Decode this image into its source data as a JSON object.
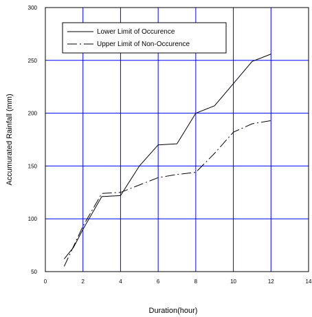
{
  "chart_data": {
    "type": "line",
    "xlabel": "Duration(hour)",
    "ylabel": "Accumurated Rainfall (mm)",
    "xlim": [
      0,
      14
    ],
    "ylim": [
      50,
      300
    ],
    "xticks": [
      0,
      2,
      4,
      6,
      8,
      10,
      12,
      14
    ],
    "yticks": [
      50,
      100,
      150,
      200,
      250,
      300
    ],
    "grid": true,
    "grid_color": "#0000ff",
    "legend_position": "top-left",
    "series": [
      {
        "name": "Lower Limit of Occurence",
        "style": "solid",
        "color": "#000000",
        "x": [
          1,
          1.5,
          2,
          3,
          4,
          5,
          6,
          7,
          8,
          9,
          10,
          11,
          12
        ],
        "y": [
          62,
          73,
          90,
          121,
          122,
          150,
          170,
          171,
          200,
          207,
          228,
          249,
          256
        ]
      },
      {
        "name": "Upper Limit of Non-Occurence",
        "style": "dash-dot",
        "color": "#000000",
        "x": [
          1,
          2,
          3,
          4,
          5,
          6,
          7,
          8,
          9,
          10,
          11,
          12
        ],
        "y": [
          55,
          93,
          124,
          125,
          132,
          139,
          142,
          144,
          162,
          182,
          190,
          193
        ]
      }
    ]
  }
}
